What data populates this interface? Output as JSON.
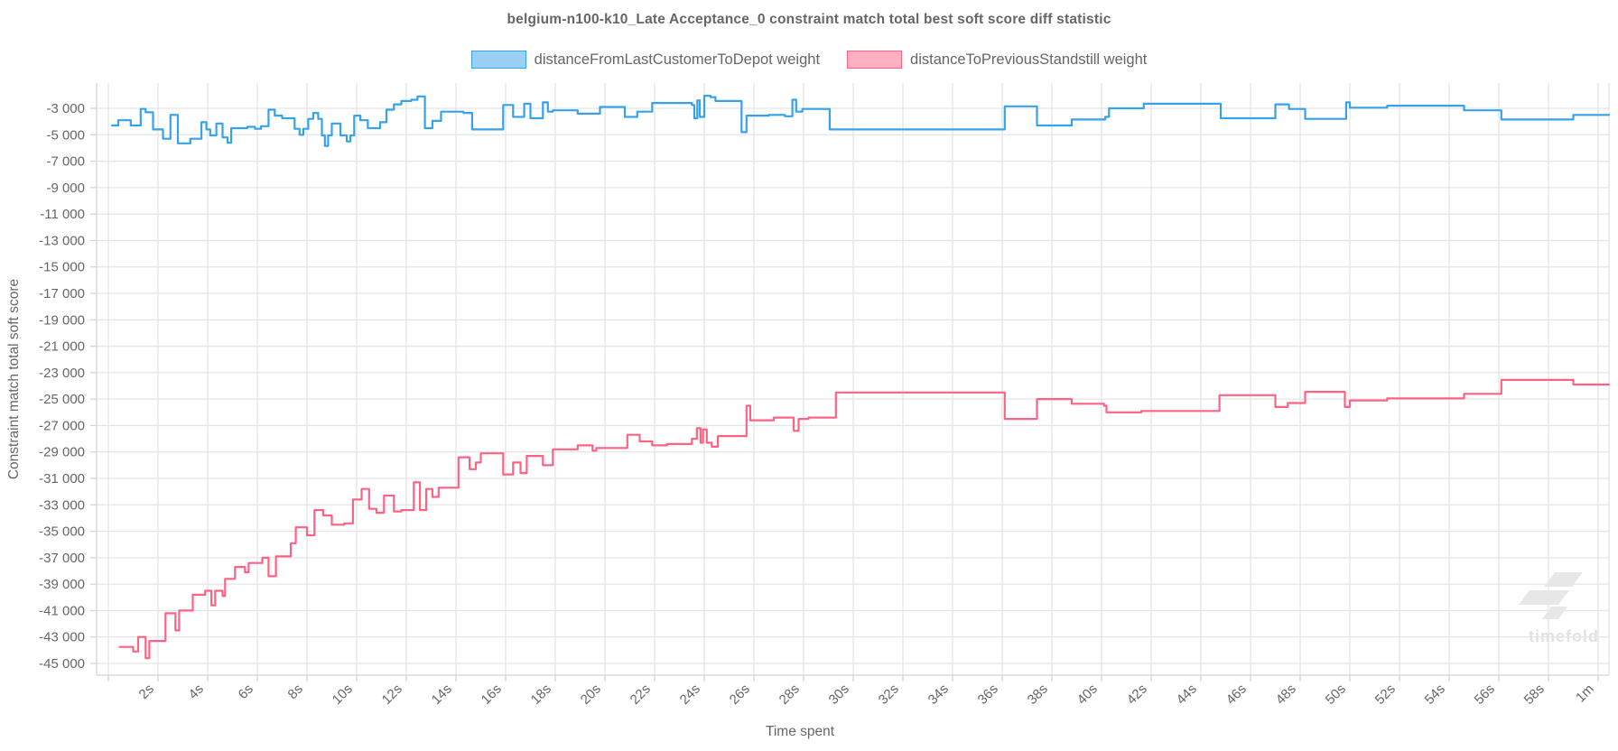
{
  "title": "belgium-n100-k10_Late Acceptance_0 constraint match total best soft score diff statistic",
  "legend": {
    "items": [
      {
        "label": "distanceFromLastCustomerToDepot weight",
        "fill": "#9BD0F5",
        "stroke": "#36A2EB"
      },
      {
        "label": "distanceToPreviousStandstill weight",
        "fill": "#FFB1C1",
        "stroke": "#FF6384"
      }
    ]
  },
  "watermark": {
    "word": "timefold"
  },
  "colors": {
    "grid": "#e5e5e5",
    "border": "#d4d4d4",
    "tick_text": "#666666",
    "watermark": "#e7e7e7"
  },
  "chart_data": {
    "type": "line",
    "step": true,
    "title": "belgium-n100-k10_Late Acceptance_0 constraint match total best soft score diff statistic",
    "xlabel": "Time spent",
    "ylabel": "Constraint match total soft score",
    "x_domain_seconds": [
      0,
      60
    ],
    "y_domain": [
      -45000,
      -3000
    ],
    "y_tick_step": 2000,
    "x_tick_step_seconds": 2,
    "grid": true,
    "legend_position": "top",
    "x_tick_labels": [
      "2s",
      "4s",
      "6s",
      "8s",
      "10s",
      "12s",
      "14s",
      "16s",
      "18s",
      "20s",
      "22s",
      "24s",
      "26s",
      "28s",
      "30s",
      "32s",
      "34s",
      "36s",
      "38s",
      "40s",
      "42s",
      "44s",
      "46s",
      "48s",
      "50s",
      "52s",
      "54s",
      "56s",
      "58s",
      "1m"
    ],
    "y_tick_labels": [
      "-3 000",
      "-5 000",
      "-7 000",
      "-9 000",
      "-11 000",
      "-13 000",
      "-15 000",
      "-17 000",
      "-19 000",
      "-21 000",
      "-23 000",
      "-25 000",
      "-27 000",
      "-29 000",
      "-31 000",
      "-33 000",
      "-35 000",
      "-37 000",
      "-39 000",
      "-41 000",
      "-43 000",
      "-45 000"
    ],
    "series": [
      {
        "name": "distanceFromLastCustomerToDepot weight",
        "color": "#36A2EB",
        "fill": "#9BD0F5",
        "points": [
          [
            0.15,
            -4300
          ],
          [
            0.4,
            -3900
          ],
          [
            0.9,
            -4300
          ],
          [
            1.3,
            -3050
          ],
          [
            1.5,
            -3300
          ],
          [
            1.8,
            -4600
          ],
          [
            2.2,
            -5300
          ],
          [
            2.5,
            -3500
          ],
          [
            2.8,
            -5650
          ],
          [
            3.3,
            -5300
          ],
          [
            3.75,
            -4050
          ],
          [
            3.95,
            -4600
          ],
          [
            4.1,
            -5050
          ],
          [
            4.35,
            -4150
          ],
          [
            4.6,
            -5200
          ],
          [
            4.8,
            -5600
          ],
          [
            4.95,
            -4500
          ],
          [
            5.6,
            -4400
          ],
          [
            5.9,
            -4550
          ],
          [
            6.15,
            -4350
          ],
          [
            6.45,
            -3100
          ],
          [
            6.7,
            -3550
          ],
          [
            7.0,
            -3750
          ],
          [
            7.5,
            -4550
          ],
          [
            7.7,
            -5000
          ],
          [
            7.85,
            -4550
          ],
          [
            8.05,
            -3800
          ],
          [
            8.25,
            -3350
          ],
          [
            8.45,
            -3800
          ],
          [
            8.6,
            -5050
          ],
          [
            8.72,
            -5850
          ],
          [
            8.85,
            -5050
          ],
          [
            9.0,
            -4150
          ],
          [
            9.35,
            -5050
          ],
          [
            9.6,
            -5500
          ],
          [
            9.75,
            -5050
          ],
          [
            9.9,
            -3550
          ],
          [
            10.15,
            -3900
          ],
          [
            10.45,
            -4500
          ],
          [
            10.95,
            -4050
          ],
          [
            11.2,
            -3100
          ],
          [
            11.5,
            -2700
          ],
          [
            11.8,
            -2450
          ],
          [
            12.2,
            -2350
          ],
          [
            12.45,
            -2100
          ],
          [
            12.75,
            -4500
          ],
          [
            13.05,
            -3950
          ],
          [
            13.4,
            -3250
          ],
          [
            14.3,
            -3350
          ],
          [
            14.65,
            -4600
          ],
          [
            15.9,
            -2750
          ],
          [
            16.3,
            -3650
          ],
          [
            16.75,
            -2650
          ],
          [
            17.0,
            -3750
          ],
          [
            17.5,
            -2550
          ],
          [
            17.7,
            -3250
          ],
          [
            17.9,
            -3150
          ],
          [
            18.9,
            -3400
          ],
          [
            19.8,
            -2900
          ],
          [
            20.8,
            -3650
          ],
          [
            21.3,
            -3250
          ],
          [
            21.9,
            -2600
          ],
          [
            23.5,
            -2750
          ],
          [
            23.6,
            -3750
          ],
          [
            23.72,
            -2400
          ],
          [
            23.82,
            -3650
          ],
          [
            24.0,
            -2050
          ],
          [
            24.25,
            -2150
          ],
          [
            24.45,
            -2450
          ],
          [
            25.5,
            -4800
          ],
          [
            25.7,
            -3550
          ],
          [
            26.6,
            -3500
          ],
          [
            27.25,
            -3600
          ],
          [
            27.55,
            -2350
          ],
          [
            27.7,
            -3250
          ],
          [
            27.95,
            -3050
          ],
          [
            29.05,
            -4600
          ],
          [
            36.1,
            -2850
          ],
          [
            37.4,
            -4300
          ],
          [
            38.8,
            -3850
          ],
          [
            40.15,
            -3650
          ],
          [
            40.3,
            -3000
          ],
          [
            41.7,
            -2650
          ],
          [
            44.8,
            -3750
          ],
          [
            47.0,
            -2700
          ],
          [
            47.55,
            -3050
          ],
          [
            48.2,
            -3800
          ],
          [
            49.85,
            -2550
          ],
          [
            50.0,
            -2950
          ],
          [
            51.5,
            -2800
          ],
          [
            54.6,
            -3150
          ],
          [
            56.1,
            -3850
          ],
          [
            59.0,
            -3500
          ]
        ]
      },
      {
        "name": "distanceToPreviousStandstill weight",
        "color": "#FF6384",
        "fill": "#FFB1C1",
        "points": [
          [
            0.45,
            -43750
          ],
          [
            1.0,
            -44100
          ],
          [
            1.2,
            -43000
          ],
          [
            1.5,
            -44600
          ],
          [
            1.65,
            -43300
          ],
          [
            2.3,
            -41200
          ],
          [
            2.7,
            -42500
          ],
          [
            2.85,
            -41000
          ],
          [
            3.4,
            -39800
          ],
          [
            3.9,
            -39500
          ],
          [
            4.15,
            -40600
          ],
          [
            4.3,
            -39500
          ],
          [
            4.6,
            -39900
          ],
          [
            4.7,
            -38600
          ],
          [
            5.1,
            -37700
          ],
          [
            5.5,
            -38100
          ],
          [
            5.65,
            -37400
          ],
          [
            6.2,
            -37000
          ],
          [
            6.45,
            -38400
          ],
          [
            6.75,
            -36900
          ],
          [
            7.35,
            -35900
          ],
          [
            7.55,
            -34700
          ],
          [
            8.0,
            -35300
          ],
          [
            8.3,
            -33400
          ],
          [
            8.65,
            -33800
          ],
          [
            9.0,
            -34500
          ],
          [
            9.5,
            -34400
          ],
          [
            9.85,
            -32600
          ],
          [
            10.2,
            -31800
          ],
          [
            10.5,
            -33300
          ],
          [
            10.8,
            -33600
          ],
          [
            11.1,
            -32300
          ],
          [
            11.5,
            -33500
          ],
          [
            11.8,
            -33400
          ],
          [
            12.3,
            -31300
          ],
          [
            12.55,
            -33400
          ],
          [
            12.8,
            -31800
          ],
          [
            13.05,
            -32400
          ],
          [
            13.3,
            -31700
          ],
          [
            14.1,
            -29400
          ],
          [
            14.55,
            -30300
          ],
          [
            14.8,
            -29800
          ],
          [
            15.0,
            -29100
          ],
          [
            15.9,
            -30700
          ],
          [
            16.3,
            -29800
          ],
          [
            16.6,
            -30600
          ],
          [
            16.85,
            -29300
          ],
          [
            17.5,
            -30000
          ],
          [
            17.9,
            -28800
          ],
          [
            18.9,
            -28500
          ],
          [
            19.5,
            -28900
          ],
          [
            19.65,
            -28700
          ],
          [
            20.9,
            -27700
          ],
          [
            21.4,
            -28200
          ],
          [
            21.9,
            -28500
          ],
          [
            22.5,
            -28400
          ],
          [
            23.5,
            -28000
          ],
          [
            23.7,
            -27200
          ],
          [
            23.85,
            -28300
          ],
          [
            23.95,
            -27300
          ],
          [
            24.1,
            -28300
          ],
          [
            24.3,
            -28600
          ],
          [
            24.55,
            -27800
          ],
          [
            25.7,
            -25500
          ],
          [
            25.85,
            -26600
          ],
          [
            26.8,
            -26400
          ],
          [
            27.6,
            -27400
          ],
          [
            27.8,
            -26500
          ],
          [
            28.2,
            -26400
          ],
          [
            29.3,
            -24500
          ],
          [
            36.1,
            -26500
          ],
          [
            37.4,
            -25000
          ],
          [
            38.8,
            -25350
          ],
          [
            40.1,
            -25500
          ],
          [
            40.2,
            -26000
          ],
          [
            41.6,
            -25900
          ],
          [
            44.75,
            -24700
          ],
          [
            47.0,
            -25600
          ],
          [
            47.5,
            -25300
          ],
          [
            48.2,
            -24450
          ],
          [
            49.8,
            -25600
          ],
          [
            50.0,
            -25100
          ],
          [
            51.5,
            -24950
          ],
          [
            54.6,
            -24600
          ],
          [
            56.1,
            -23550
          ],
          [
            59.0,
            -23900
          ]
        ]
      }
    ]
  }
}
